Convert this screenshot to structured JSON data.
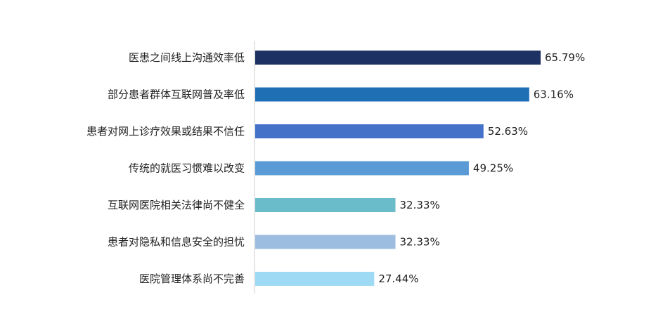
{
  "chart_data": {
    "type": "bar",
    "orientation": "horizontal",
    "title": "",
    "xlabel": "",
    "ylabel": "",
    "xlim": [
      0,
      100
    ],
    "grid": false,
    "legend": "none",
    "categories": [
      "医患之间线上沟通效率低",
      "部分患者群体互联网普及率低",
      "患者对网上诊疗效果或结果不信任",
      "传统的就医习惯难以改变",
      "互联网医院相关法律尚不健全",
      "患者对隐私和信息安全的担忧",
      "医院管理体系尚不完善"
    ],
    "values": [
      65.79,
      63.16,
      52.63,
      49.25,
      32.33,
      32.33,
      27.44
    ],
    "value_labels": [
      "65.79%",
      "63.16%",
      "52.63%",
      "49.25%",
      "32.33%",
      "32.33%",
      "27.44%"
    ],
    "colors": [
      "#1e3163",
      "#1f6fb5",
      "#4472c9",
      "#5b9bd5",
      "#6bbccb",
      "#9dbde0",
      "#9fdaf5"
    ],
    "axis_color": "#cccccc"
  }
}
